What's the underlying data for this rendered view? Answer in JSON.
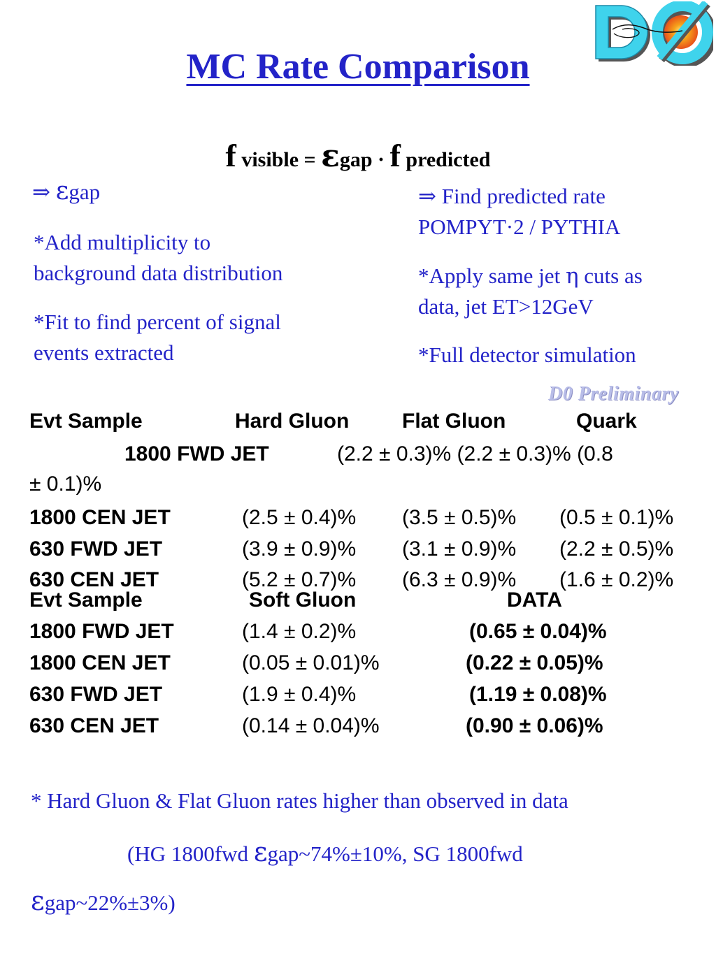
{
  "title": "MC Rate Comparison",
  "logo": {
    "text": "DØ"
  },
  "formula": {
    "f1": "f",
    "visible": " visible = ",
    "eps": "ε",
    "gap": "gap · ",
    "f2": "f",
    "predicted": " predicted"
  },
  "left_column": {
    "arrow": "⇒ ",
    "eps": "ε",
    "gap": "gap",
    "bullet1_line1": "*Add multiplicity to",
    "bullet1_line2": "background data distribution",
    "bullet2_line1": "*Fit to find percent of signal",
    "bullet2_line2": "events extracted"
  },
  "right_column": {
    "line1": "⇒ Find predicted rate",
    "line2": "POMPYT·2 / PYTHIA",
    "bullet1_line1_pre": "*Apply same jet ",
    "eta": "η",
    "bullet1_line1_post": " cuts as",
    "bullet1_line2": "data, jet ET>12GeV",
    "bullet2": "*Full detector simulation"
  },
  "watermark": "D0 Preliminary",
  "table1": {
    "header": [
      "Evt Sample",
      "Hard Gluon",
      "Flat Gluon",
      "Quark"
    ],
    "row1_label": "1800 FWD JET",
    "row1_values": "(2.2 ± 0.3)%  (2.2 ± 0.3)%  (0.8",
    "row1_wrap": "± 0.1)%",
    "rows": [
      {
        "label": "1800 CEN JET",
        "v1": "(2.5 ± 0.4)%",
        "v2": "(3.5 ± 0.5)%",
        "v3": "(0.5 ± 0.1)%"
      },
      {
        "label": "630 FWD JET",
        "v1": "(3.9 ± 0.9)%",
        "v2": "(3.1 ± 0.9)%",
        "v3": "(2.2 ± 0.5)%"
      },
      {
        "label": "630 CEN JET",
        "v1": "(5.2 ± 0.7)%",
        "v2": "(6.3 ± 0.9)%",
        "v3": "(1.6 ± 0.2)%"
      }
    ]
  },
  "table2": {
    "header": [
      "Evt Sample",
      "Soft Gluon",
      "DATA"
    ],
    "rows": [
      {
        "label": "1800 FWD JET",
        "sg": "(1.4 ± 0.2)%",
        "data": "(0.65 ± 0.04)%"
      },
      {
        "label": "1800 CEN JET",
        "sg": "(0.05 ± 0.01)%",
        "data": "(0.22 ± 0.05)%"
      },
      {
        "label": "630 FWD JET",
        "sg": "(1.9 ± 0.4)%",
        "data": "(1.19 ± 0.08)%"
      },
      {
        "label": "630 CEN JET",
        "sg": "(0.14 ± 0.04)%",
        "data": "(0.90 ± 0.06)%"
      }
    ]
  },
  "notes": {
    "line1": "* Hard Gluon & Flat Gluon rates higher than observed in data",
    "line2_pre": "(HG 1800fwd ",
    "eps": "ε",
    "line2_post": "gap~74%±10%, SG 1800fwd",
    "line3_post": "gap~22%±3%)"
  },
  "colors": {
    "text_blue": "#2323c8",
    "watermark": "#b8bde8",
    "logo_cyan": "#3fd3ec",
    "logo_red": "#e8501a"
  }
}
